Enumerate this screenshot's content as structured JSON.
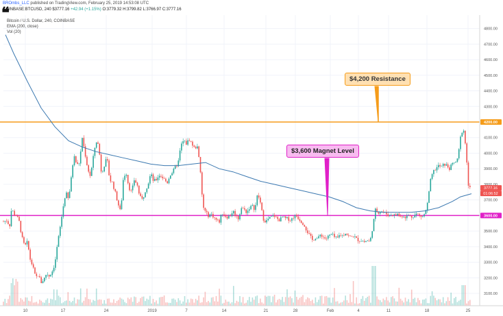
{
  "header": {
    "author": "BROmbs_LLC",
    "published": "published on TradingView.com, February 25, 2019 14:53:08 UTC",
    "symbol": "COINBASE:BTCUSD, 240",
    "price": "$3777.16",
    "change": "+42.94 (+1.15%)",
    "ohlc": "O:3779.32 H:3799.82 L:3766.97 C:3777.16"
  },
  "legend": {
    "title": "Bitcoin / U.S. Dollar, 240, COINBASE",
    "ema": "EMA (200, close)",
    "vol": "Vol (20)"
  },
  "annotations": {
    "resistance": "$4,200 Resistance",
    "magnet": "$3,600 Magnet Level"
  },
  "colors": {
    "up": "#26a69a",
    "down": "#ef5350",
    "ema": "#3b78b0",
    "resistance_line": "#f59c1a",
    "magnet_line": "#e020c8"
  },
  "chart_data": {
    "type": "candlestick",
    "y_axis_ticks": [
      "4800.00",
      "4700.00",
      "4600.00",
      "4500.00",
      "4400.00",
      "4300.00",
      "4200.00",
      "4100.00",
      "4000.00",
      "3900.00",
      "3800.00",
      "3700.00",
      "3600.00",
      "3500.00",
      "3400.00",
      "3300.00",
      "3200.00",
      "3100.00"
    ],
    "x_axis_labels": [
      "10",
      "17",
      "24",
      "2019",
      "7",
      "14",
      "21",
      "28",
      "Feb",
      "4",
      "11",
      "18",
      "25"
    ],
    "ylim": [
      3070,
      4830
    ],
    "horizontal_levels": [
      {
        "label": "4200.00",
        "value": 4200,
        "color": "#f59c1a"
      },
      {
        "label": "3600.00",
        "value": 3600,
        "color": "#e020c8"
      }
    ],
    "last_price_label": "3777.16",
    "last_price_countdown": "01:06:52",
    "price_anchors": [
      [
        0,
        3650
      ],
      [
        5,
        3560
      ],
      [
        10,
        3570
      ],
      [
        14,
        3530
      ],
      [
        17,
        3650
      ],
      [
        20,
        3610
      ],
      [
        24,
        3600
      ],
      [
        28,
        3560
      ],
      [
        32,
        3460
      ],
      [
        36,
        3400
      ],
      [
        40,
        3430
      ],
      [
        44,
        3320
      ],
      [
        48,
        3270
      ],
      [
        52,
        3200
      ],
      [
        56,
        3220
      ],
      [
        60,
        3170
      ],
      [
        64,
        3190
      ],
      [
        68,
        3230
      ],
      [
        72,
        3210
      ],
      [
        76,
        3240
      ],
      [
        80,
        3290
      ],
      [
        84,
        3420
      ],
      [
        88,
        3530
      ],
      [
        92,
        3650
      ],
      [
        96,
        3750
      ],
      [
        100,
        3700
      ],
      [
        104,
        3840
      ],
      [
        108,
        4000
      ],
      [
        112,
        3920
      ],
      [
        116,
        3940
      ],
      [
        120,
        4100
      ],
      [
        124,
        4000
      ],
      [
        128,
        3900
      ],
      [
        132,
        3850
      ],
      [
        136,
        3970
      ],
      [
        140,
        4080
      ],
      [
        144,
        4050
      ],
      [
        148,
        3870
      ],
      [
        152,
        3920
      ],
      [
        156,
        3970
      ],
      [
        160,
        3830
      ],
      [
        164,
        3810
      ],
      [
        168,
        3750
      ],
      [
        172,
        3680
      ],
      [
        176,
        3620
      ],
      [
        180,
        3840
      ],
      [
        184,
        3880
      ],
      [
        188,
        3780
      ],
      [
        192,
        3750
      ],
      [
        196,
        3830
      ],
      [
        200,
        3800
      ],
      [
        204,
        3720
      ],
      [
        208,
        3700
      ],
      [
        212,
        3760
      ],
      [
        216,
        3800
      ],
      [
        220,
        3870
      ],
      [
        224,
        3820
      ],
      [
        228,
        3830
      ],
      [
        232,
        3860
      ],
      [
        236,
        3850
      ],
      [
        240,
        3830
      ],
      [
        244,
        3810
      ],
      [
        248,
        3860
      ],
      [
        252,
        3880
      ],
      [
        256,
        3910
      ],
      [
        260,
        3940
      ],
      [
        264,
        4050
      ],
      [
        268,
        4080
      ],
      [
        272,
        4060
      ],
      [
        276,
        4090
      ],
      [
        280,
        4060
      ],
      [
        284,
        4030
      ],
      [
        288,
        4050
      ],
      [
        292,
        3900
      ],
      [
        296,
        3660
      ],
      [
        300,
        3620
      ],
      [
        304,
        3600
      ],
      [
        308,
        3610
      ],
      [
        312,
        3590
      ],
      [
        316,
        3570
      ],
      [
        320,
        3560
      ],
      [
        324,
        3620
      ],
      [
        328,
        3600
      ],
      [
        332,
        3590
      ],
      [
        336,
        3600
      ],
      [
        340,
        3630
      ],
      [
        344,
        3600
      ],
      [
        348,
        3580
      ],
      [
        352,
        3650
      ],
      [
        356,
        3640
      ],
      [
        360,
        3620
      ],
      [
        364,
        3650
      ],
      [
        368,
        3660
      ],
      [
        372,
        3640
      ],
      [
        376,
        3740
      ],
      [
        380,
        3680
      ],
      [
        384,
        3580
      ],
      [
        388,
        3560
      ],
      [
        392,
        3580
      ],
      [
        396,
        3590
      ],
      [
        400,
        3600
      ],
      [
        404,
        3580
      ],
      [
        408,
        3570
      ],
      [
        412,
        3590
      ],
      [
        416,
        3580
      ],
      [
        420,
        3580
      ],
      [
        424,
        3570
      ],
      [
        428,
        3590
      ],
      [
        432,
        3600
      ],
      [
        436,
        3580
      ],
      [
        440,
        3560
      ],
      [
        444,
        3540
      ],
      [
        448,
        3500
      ],
      [
        452,
        3470
      ],
      [
        456,
        3440
      ],
      [
        460,
        3460
      ],
      [
        464,
        3450
      ],
      [
        468,
        3480
      ],
      [
        472,
        3460
      ],
      [
        476,
        3450
      ],
      [
        480,
        3470
      ],
      [
        484,
        3480
      ],
      [
        488,
        3460
      ],
      [
        492,
        3450
      ],
      [
        496,
        3480
      ],
      [
        500,
        3470
      ],
      [
        504,
        3490
      ],
      [
        508,
        3470
      ],
      [
        512,
        3460
      ],
      [
        516,
        3470
      ],
      [
        520,
        3450
      ],
      [
        524,
        3440
      ],
      [
        528,
        3440
      ],
      [
        532,
        3430
      ],
      [
        536,
        3440
      ],
      [
        540,
        3430
      ],
      [
        544,
        3530
      ],
      [
        548,
        3640
      ],
      [
        552,
        3620
      ],
      [
        556,
        3630
      ],
      [
        560,
        3620
      ],
      [
        564,
        3610
      ],
      [
        568,
        3600
      ],
      [
        572,
        3610
      ],
      [
        576,
        3600
      ],
      [
        580,
        3610
      ],
      [
        584,
        3590
      ],
      [
        588,
        3600
      ],
      [
        592,
        3590
      ],
      [
        596,
        3600
      ],
      [
        600,
        3590
      ],
      [
        604,
        3600
      ],
      [
        608,
        3610
      ],
      [
        612,
        3600
      ],
      [
        616,
        3590
      ],
      [
        620,
        3610
      ],
      [
        624,
        3680
      ],
      [
        628,
        3820
      ],
      [
        632,
        3880
      ],
      [
        636,
        3900
      ],
      [
        640,
        3920
      ],
      [
        644,
        3910
      ],
      [
        648,
        3930
      ],
      [
        652,
        3920
      ],
      [
        656,
        3900
      ],
      [
        660,
        3930
      ],
      [
        664,
        3940
      ],
      [
        668,
        3960
      ],
      [
        672,
        4100
      ],
      [
        676,
        4170
      ],
      [
        680,
        4020
      ],
      [
        684,
        3760
      ],
      [
        688,
        3790
      ]
    ],
    "ema_anchors": [
      [
        8,
        4760
      ],
      [
        20,
        4640
      ],
      [
        40,
        4460
      ],
      [
        60,
        4290
      ],
      [
        80,
        4170
      ],
      [
        100,
        4080
      ],
      [
        120,
        4040
      ],
      [
        140,
        4010
      ],
      [
        160,
        3990
      ],
      [
        180,
        3970
      ],
      [
        200,
        3950
      ],
      [
        220,
        3930
      ],
      [
        240,
        3920
      ],
      [
        260,
        3920
      ],
      [
        280,
        3930
      ],
      [
        300,
        3940
      ],
      [
        320,
        3900
      ],
      [
        340,
        3880
      ],
      [
        360,
        3850
      ],
      [
        380,
        3820
      ],
      [
        400,
        3800
      ],
      [
        420,
        3780
      ],
      [
        440,
        3760
      ],
      [
        460,
        3740
      ],
      [
        480,
        3720
      ],
      [
        500,
        3690
      ],
      [
        520,
        3650
      ],
      [
        540,
        3630
      ],
      [
        560,
        3620
      ],
      [
        580,
        3620
      ],
      [
        600,
        3620
      ],
      [
        620,
        3630
      ],
      [
        640,
        3650
      ],
      [
        660,
        3690
      ],
      [
        672,
        3720
      ],
      [
        688,
        3740
      ]
    ]
  }
}
